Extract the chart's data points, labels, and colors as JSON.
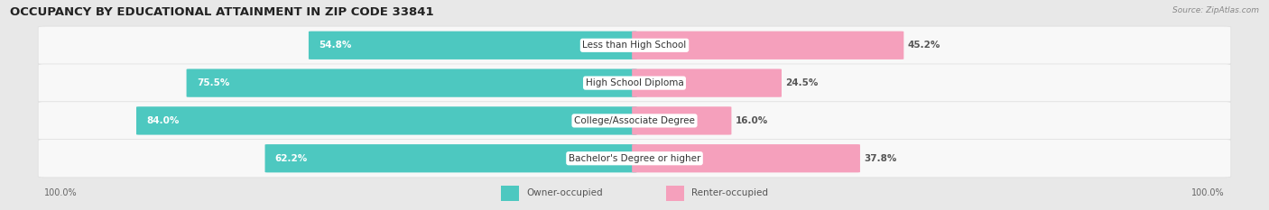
{
  "title": "OCCUPANCY BY EDUCATIONAL ATTAINMENT IN ZIP CODE 33841",
  "source": "Source: ZipAtlas.com",
  "categories": [
    "Less than High School",
    "High School Diploma",
    "College/Associate Degree",
    "Bachelor's Degree or higher"
  ],
  "owner_pct": [
    54.8,
    75.5,
    84.0,
    62.2
  ],
  "renter_pct": [
    45.2,
    24.5,
    16.0,
    37.8
  ],
  "owner_color": "#4DC8C0",
  "renter_color": "#F07098",
  "renter_color_light": "#F5A0BC",
  "bg_color": "#e8e8e8",
  "row_bg_color": "#f5f5f5",
  "title_fontsize": 9.5,
  "label_fontsize": 7.5,
  "pct_fontsize": 7.5,
  "legend_fontsize": 7.5,
  "axis_label_left": "100.0%",
  "axis_label_right": "100.0%"
}
